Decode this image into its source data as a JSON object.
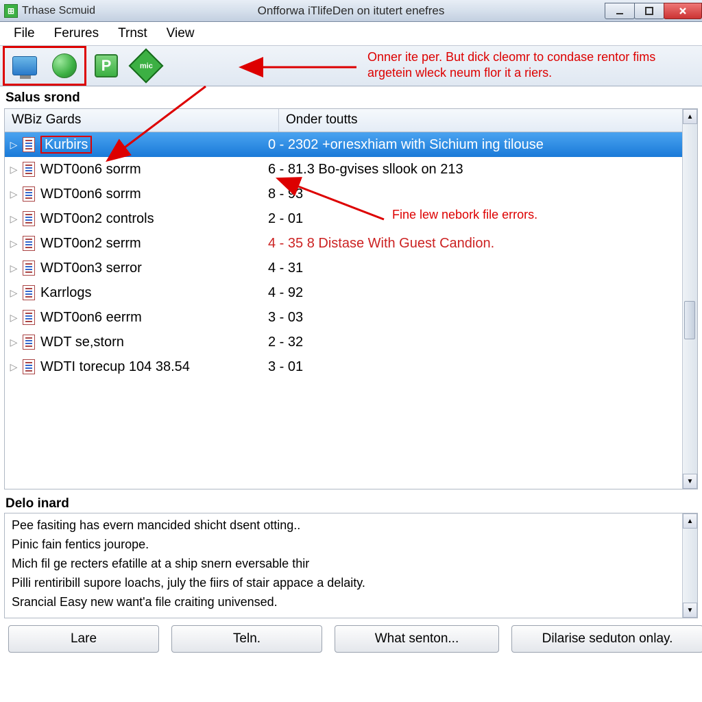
{
  "window": {
    "app_name": "Trhase Scmuid",
    "doc_title": "Onfforwa iTlifeDen on itutert enefres"
  },
  "menu": {
    "file": "File",
    "ferures": "Ferures",
    "trnst": "Trnst",
    "view": "View"
  },
  "toolbar": {
    "icons": {
      "p_label": "P",
      "mic_label": "mic"
    }
  },
  "annotations": {
    "top_right": "Onner ite per. But dick cleomr to condase rentor fims argetein wleck neum flor it a riers.",
    "mid_right": "Fine lew nebork file errors.",
    "colors": {
      "annot": "#d00000"
    }
  },
  "list": {
    "section_label": "Salus srond",
    "headers": {
      "col1": "WBiz Gards",
      "col2": "Onder toutts"
    },
    "rows": [
      {
        "name": "Kurbirs",
        "desc": "0 - 2302 +orıesxhiam with Sichium ing tilouse",
        "selected": true,
        "name_boxed": true
      },
      {
        "name": "WDT0on6 sorrm",
        "desc": "6 - 81.3 Bo-gvises sllook on 213"
      },
      {
        "name": "WDT0on6 sorrm",
        "desc": "8 - 93"
      },
      {
        "name": "WDT0on2 controls",
        "desc": "2 - 01"
      },
      {
        "name": "WDT0on2 serrm",
        "desc": "4 - 35 8 Distase With Guest Candion.",
        "desc_red": true
      },
      {
        "name": "WDT0on3 serror",
        "desc": "4 - 31"
      },
      {
        "name": "Karrlogs",
        "desc": "4 - 92"
      },
      {
        "name": "WDT0on6 eerrm",
        "desc": "3 - 03"
      },
      {
        "name": "WDT se,storn",
        "desc": "2 - 32"
      },
      {
        "name": "WDTI torecup  104 38.54",
        "desc": "3 - 01"
      }
    ]
  },
  "details": {
    "label": "Delo inard",
    "lines": [
      "Pee fasiting has evern mancided shicht dsent otting..",
      "Pinic fain fentics jourope.",
      "Mich fil ge recters efatille at a ship snern eversable thir",
      "Pilli rentiribill supore loachs, july the fiirs of stair appace a delaity.",
      "Srancial Easy new want'a file craiting univensed."
    ]
  },
  "buttons": {
    "b1": "Lare",
    "b2": "Teln.",
    "b3": "What senton...",
    "b4": "Dilarise seduton onlay."
  }
}
